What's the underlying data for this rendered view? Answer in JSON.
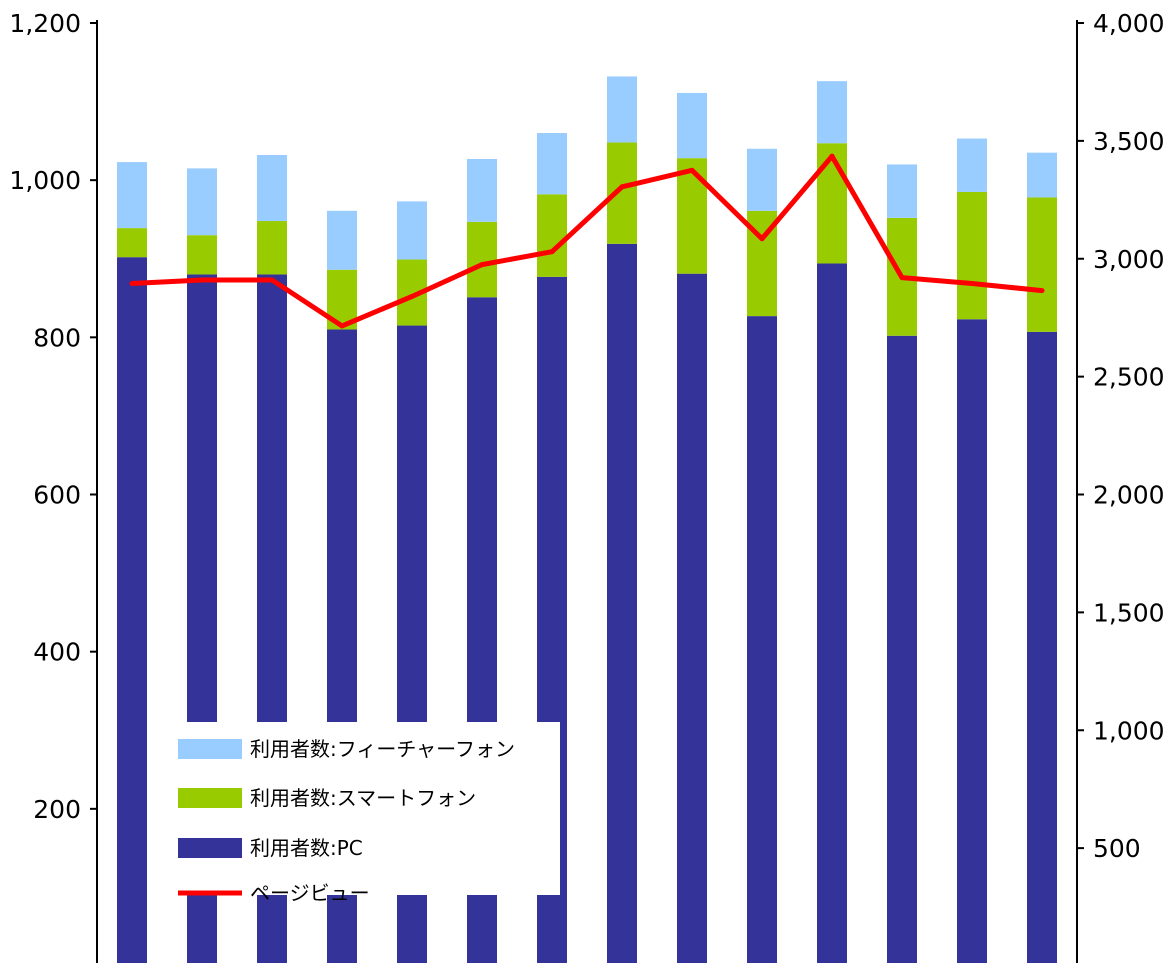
{
  "chart_data": {
    "type": "bar",
    "stacked": true,
    "secondary_axis": true,
    "categories": [
      "",
      "",
      "",
      "",
      "",
      "",
      "",
      "",
      "",
      "",
      "",
      "",
      "",
      ""
    ],
    "series": [
      {
        "name": "利用者数:PC",
        "type": "bar",
        "axis": "left",
        "color": "#333399",
        "values": [
          902,
          880,
          880,
          810,
          815,
          851,
          877,
          919,
          881,
          827,
          894,
          802,
          823,
          807
        ]
      },
      {
        "name": "利用者数:スマートフォン",
        "type": "bar",
        "axis": "left",
        "color": "#99cc00",
        "values": [
          37,
          50,
          68,
          76,
          84,
          96,
          105,
          129,
          147,
          134,
          153,
          150,
          162,
          171
        ]
      },
      {
        "name": "利用者数:フィーチャーフォン",
        "type": "bar",
        "axis": "left",
        "color": "#99ccff",
        "values": [
          84,
          85,
          84,
          75,
          74,
          80,
          78,
          84,
          83,
          79,
          79,
          68,
          68,
          57
        ]
      },
      {
        "name": "ページビュー",
        "type": "line",
        "axis": "right",
        "color": "#ff0000",
        "values": [
          2895,
          2910,
          2910,
          2715,
          2840,
          2975,
          3030,
          3305,
          3375,
          3085,
          3435,
          2920,
          2895,
          2865
        ]
      }
    ],
    "y_left": {
      "min": 0,
      "max": 1200,
      "ticks": [
        200,
        400,
        600,
        800,
        1000,
        1200
      ],
      "tick_labels": [
        "200",
        "400",
        "600",
        "800",
        "1,000",
        "1,200"
      ]
    },
    "y_right": {
      "min": 0,
      "max": 4000,
      "ticks": [
        500,
        1000,
        1500,
        2000,
        2500,
        3000,
        3500,
        4000
      ],
      "tick_labels": [
        "500",
        "1,000",
        "1,500",
        "2,000",
        "2,500",
        "3,000",
        "3,500",
        "4,000"
      ]
    },
    "grid": false,
    "legend": {
      "position": "bottom-left",
      "order": [
        "利用者数:フィーチャーフォン",
        "利用者数:スマートフォン",
        "利用者数:PC",
        "ページビュー"
      ]
    }
  }
}
